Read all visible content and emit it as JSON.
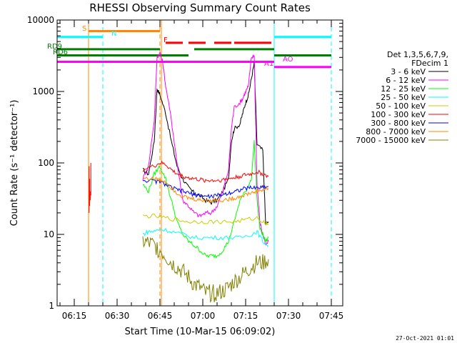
{
  "chart_data": {
    "type": "line",
    "title": "RHESSI Observing Summary Count Rates",
    "xlabel": "Start Time (10-Mar-15 06:09:02)",
    "ylabel": "Count Rate (s⁻¹ detector⁻¹)",
    "yscale": "log",
    "ylim": [
      1,
      10000
    ],
    "xlim_minutes": [
      0,
      100
    ],
    "y_ticks": [
      "1",
      "10",
      "100",
      "1000",
      "10000"
    ],
    "x_ticks": [
      {
        "label": "06:15",
        "t": 6
      },
      {
        "label": "06:30",
        "t": 21
      },
      {
        "label": "06:45",
        "t": 36
      },
      {
        "label": "07:00",
        "t": 51
      },
      {
        "label": "07:15",
        "t": 66
      },
      {
        "label": "07:30",
        "t": 81
      },
      {
        "label": "07:45",
        "t": 96
      }
    ],
    "legend": {
      "header": [
        "Det 1,3,5,6,7,9,",
        "FDecim 1"
      ],
      "placement": "right"
    },
    "series": [
      {
        "name": "3 - 6 keV",
        "color": "#000000",
        "points": [
          [
            30,
            80
          ],
          [
            32,
            70
          ],
          [
            34,
            200
          ],
          [
            35,
            1100
          ],
          [
            36,
            900
          ],
          [
            38,
            500
          ],
          [
            40,
            200
          ],
          [
            42,
            90
          ],
          [
            44,
            60
          ],
          [
            46,
            45
          ],
          [
            48,
            38
          ],
          [
            50,
            35
          ],
          [
            52,
            30
          ],
          [
            54,
            28
          ],
          [
            56,
            30
          ],
          [
            58,
            40
          ],
          [
            60,
            60
          ],
          [
            61,
            200
          ],
          [
            62,
            300
          ],
          [
            64,
            350
          ],
          [
            65,
            500
          ],
          [
            66,
            700
          ],
          [
            67,
            900
          ],
          [
            68,
            1500
          ],
          [
            69,
            2500
          ],
          [
            70,
            180
          ],
          [
            72,
            150
          ],
          [
            73,
            14
          ],
          [
            74,
            15
          ]
        ]
      },
      {
        "name": "6 - 12 keV",
        "color": "#ff00ff",
        "points": [
          [
            30,
            60
          ],
          [
            32,
            90
          ],
          [
            34,
            400
          ],
          [
            35,
            3000
          ],
          [
            36,
            3500
          ],
          [
            37,
            2500
          ],
          [
            38,
            1200
          ],
          [
            40,
            400
          ],
          [
            42,
            100
          ],
          [
            44,
            30
          ],
          [
            46,
            25
          ],
          [
            48,
            20
          ],
          [
            50,
            18
          ],
          [
            52,
            20
          ],
          [
            54,
            20
          ],
          [
            56,
            25
          ],
          [
            58,
            40
          ],
          [
            60,
            80
          ],
          [
            61,
            300
          ],
          [
            62,
            600
          ],
          [
            64,
            700
          ],
          [
            65,
            800
          ],
          [
            66,
            1000
          ],
          [
            67,
            1200
          ],
          [
            68,
            3000
          ],
          [
            69,
            3200
          ],
          [
            70,
            50
          ],
          [
            71,
            15
          ],
          [
            72,
            10
          ],
          [
            73,
            7
          ],
          [
            74,
            8
          ]
        ]
      },
      {
        "name": "12 - 25 keV",
        "color": "#00ff00",
        "points": [
          [
            30,
            50
          ],
          [
            32,
            40
          ],
          [
            34,
            70
          ],
          [
            36,
            90
          ],
          [
            38,
            60
          ],
          [
            40,
            30
          ],
          [
            42,
            15
          ],
          [
            44,
            10
          ],
          [
            46,
            8
          ],
          [
            48,
            7
          ],
          [
            50,
            6
          ],
          [
            52,
            5
          ],
          [
            54,
            5
          ],
          [
            56,
            5
          ],
          [
            58,
            6
          ],
          [
            60,
            8
          ],
          [
            62,
            15
          ],
          [
            64,
            30
          ],
          [
            66,
            40
          ],
          [
            68,
            60
          ],
          [
            69,
            200
          ],
          [
            70,
            30
          ],
          [
            71,
            12
          ],
          [
            72,
            10
          ],
          [
            73,
            8
          ],
          [
            74,
            9
          ]
        ]
      },
      {
        "name": "25 - 50 keV",
        "color": "#00ffff",
        "points": [
          [
            30,
            10
          ],
          [
            32,
            11
          ],
          [
            34,
            11
          ],
          [
            36,
            12
          ],
          [
            40,
            11
          ],
          [
            44,
            10
          ],
          [
            48,
            9
          ],
          [
            52,
            9
          ],
          [
            56,
            9
          ],
          [
            60,
            9
          ],
          [
            64,
            9
          ],
          [
            68,
            10
          ],
          [
            70,
            11
          ],
          [
            72,
            8
          ],
          [
            74,
            7
          ]
        ]
      },
      {
        "name": "50 - 100 keV",
        "color": "#cccc00",
        "points": [
          [
            30,
            18
          ],
          [
            34,
            18
          ],
          [
            38,
            17
          ],
          [
            42,
            16
          ],
          [
            46,
            15
          ],
          [
            50,
            15
          ],
          [
            54,
            15
          ],
          [
            58,
            15
          ],
          [
            62,
            15
          ],
          [
            66,
            16
          ],
          [
            70,
            17
          ],
          [
            72,
            15
          ],
          [
            74,
            14
          ]
        ]
      },
      {
        "name": "100 - 300 keV",
        "color": "#ff0000",
        "points": [
          [
            30,
            80
          ],
          [
            34,
            90
          ],
          [
            36,
            100
          ],
          [
            38,
            95
          ],
          [
            40,
            80
          ],
          [
            42,
            70
          ],
          [
            44,
            65
          ],
          [
            46,
            62
          ],
          [
            48,
            60
          ],
          [
            50,
            58
          ],
          [
            52,
            57
          ],
          [
            54,
            57
          ],
          [
            56,
            57
          ],
          [
            58,
            58
          ],
          [
            60,
            60
          ],
          [
            62,
            62
          ],
          [
            64,
            65
          ],
          [
            66,
            68
          ],
          [
            68,
            70
          ],
          [
            70,
            75
          ],
          [
            72,
            70
          ],
          [
            74,
            65
          ]
        ]
      },
      {
        "name": "300 - 800 keV",
        "color": "#0000ff",
        "points": [
          [
            30,
            58
          ],
          [
            34,
            55
          ],
          [
            36,
            55
          ],
          [
            38,
            50
          ],
          [
            40,
            45
          ],
          [
            42,
            42
          ],
          [
            44,
            40
          ],
          [
            46,
            38
          ],
          [
            48,
            36
          ],
          [
            50,
            35
          ],
          [
            52,
            34
          ],
          [
            54,
            34
          ],
          [
            56,
            35
          ],
          [
            58,
            36
          ],
          [
            60,
            38
          ],
          [
            62,
            40
          ],
          [
            64,
            42
          ],
          [
            66,
            44
          ],
          [
            68,
            45
          ],
          [
            70,
            45
          ],
          [
            72,
            46
          ],
          [
            74,
            47
          ]
        ]
      },
      {
        "name": "800 - 7000 keV",
        "color": "#ff8800",
        "points": [
          [
            30,
            62
          ],
          [
            34,
            60
          ],
          [
            36,
            58
          ],
          [
            38,
            55
          ],
          [
            40,
            45
          ],
          [
            42,
            38
          ],
          [
            44,
            34
          ],
          [
            46,
            32
          ],
          [
            48,
            31
          ],
          [
            50,
            30
          ],
          [
            52,
            30
          ],
          [
            54,
            30
          ],
          [
            56,
            30
          ],
          [
            58,
            30
          ],
          [
            60,
            31
          ],
          [
            62,
            32
          ],
          [
            64,
            34
          ],
          [
            66,
            36
          ],
          [
            68,
            38
          ],
          [
            70,
            40
          ],
          [
            72,
            42
          ],
          [
            74,
            44
          ]
        ]
      },
      {
        "name": "7000 - 15000 keV",
        "color": "#808000",
        "points": [
          [
            30,
            8
          ],
          [
            32,
            7.5
          ],
          [
            34,
            7
          ],
          [
            36,
            6
          ],
          [
            38,
            5
          ],
          [
            40,
            4
          ],
          [
            42,
            3.5
          ],
          [
            44,
            3
          ],
          [
            46,
            2.5
          ],
          [
            48,
            2
          ],
          [
            50,
            1.8
          ],
          [
            52,
            1.5
          ],
          [
            54,
            1.5
          ],
          [
            56,
            1.5
          ],
          [
            58,
            1.6
          ],
          [
            60,
            1.8
          ],
          [
            62,
            2.2
          ],
          [
            64,
            2.5
          ],
          [
            66,
            3
          ],
          [
            68,
            3.5
          ],
          [
            70,
            4
          ],
          [
            72,
            4
          ],
          [
            74,
            4.5
          ]
        ]
      }
    ],
    "spikes": [
      {
        "t": 11.2,
        "values": [
          [
            20,
            90
          ],
          [
            25,
            60
          ],
          [
            30,
            40
          ],
          [
            35,
            100
          ]
        ],
        "color": "#ff0000"
      }
    ],
    "bars": [
      {
        "label": "S",
        "color": "#ff8800",
        "y": 7000,
        "segments": [
          [
            11,
            36
          ]
        ]
      },
      {
        "label": "N",
        "color": "#00ffff",
        "y": 5800,
        "segments": [
          [
            0,
            16
          ]
        ]
      },
      {
        "label": "",
        "color": "#00ffff",
        "y": 5800,
        "segments": [
          [
            76,
            96
          ]
        ]
      },
      {
        "label": "F",
        "color": "#ff0000",
        "y": 4800,
        "segments": [
          [
            38,
            44
          ],
          [
            46,
            52
          ],
          [
            55,
            61
          ],
          [
            62,
            75
          ]
        ]
      },
      {
        "label": "RD9",
        "color": "#008000",
        "y": 3900,
        "segments": [
          [
            0,
            36
          ],
          [
            48,
            76
          ]
        ]
      },
      {
        "label": "RD6",
        "color": "#008000",
        "y": 3200,
        "segments": [
          [
            0,
            36
          ],
          [
            36,
            46
          ],
          [
            76,
            96
          ]
        ]
      },
      {
        "label": "",
        "color": "#ff00ff",
        "y": 2600,
        "segments": [
          [
            0,
            76
          ]
        ]
      },
      {
        "label": "A1",
        "color": "#ff00ff",
        "y": 2600,
        "segments": []
      },
      {
        "label": "AO",
        "color": "#ff00ff",
        "y": 2200,
        "segments": [
          [
            76,
            96
          ]
        ]
      }
    ],
    "vlines": [
      {
        "t": 0,
        "color": "#00ffff",
        "dashed": false
      },
      {
        "t": 11,
        "color": "#ff8800",
        "dashed": false
      },
      {
        "t": 16,
        "color": "#00ffff",
        "dashed": true
      },
      {
        "t": 36,
        "color": "#ff8800",
        "dashed": true
      },
      {
        "t": 36.5,
        "color": "#ff8800",
        "dashed": false
      },
      {
        "t": 76,
        "color": "#00ffff",
        "dashed": false
      },
      {
        "t": 96,
        "color": "#00ffff",
        "dashed": true
      }
    ],
    "footer_date": "27-Oct-2021 01:01"
  }
}
